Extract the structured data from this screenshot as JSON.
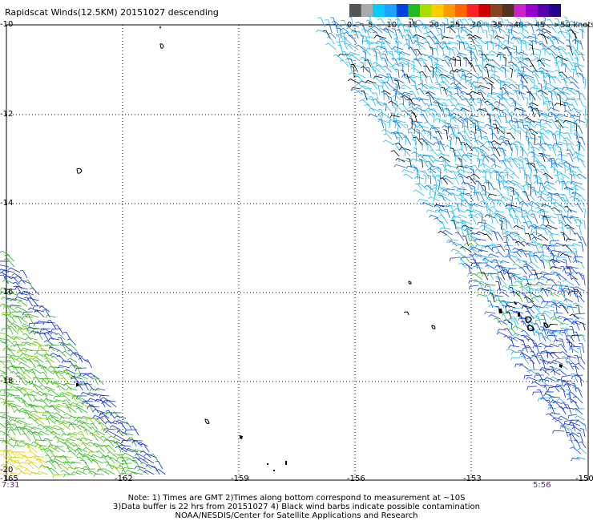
{
  "title": "Rapidscat Winds(12.5KM) 20151027 descending",
  "colorbar": {
    "labels": [
      "0",
      "5",
      "10",
      "15",
      "20",
      "25",
      "30",
      "35",
      "40",
      "45",
      ">50 knots"
    ],
    "colors": [
      "#555555",
      "#aaaaaa",
      "#00ccff",
      "#1aa3ff",
      "#0044dd",
      "#22bb22",
      "#aadd00",
      "#ffcc00",
      "#ff9900",
      "#ff6600",
      "#ff2222",
      "#cc0000",
      "#884422",
      "#553322",
      "#cc22cc",
      "#9900cc",
      "#5500aa",
      "#220088"
    ]
  },
  "axes": {
    "lat_labels": [
      "-10",
      "-12",
      "-14",
      "-16",
      "-18",
      "-20"
    ],
    "lon_labels": [
      "-165",
      "-162",
      "-159",
      "-156",
      "-153",
      "-150"
    ]
  },
  "times": {
    "left": "7:31",
    "right": "5:56"
  },
  "notes": {
    "line1": "Note: 1) Times are GMT 2)Times along bottom correspond to measurement at ~10S",
    "line2": "3)Data buffer is 22 hrs from 20151027 4) Black wind barbs indicate possible contamination",
    "line3": "NOAA/NESDIS/Center for Satellite Applications and Research"
  }
}
